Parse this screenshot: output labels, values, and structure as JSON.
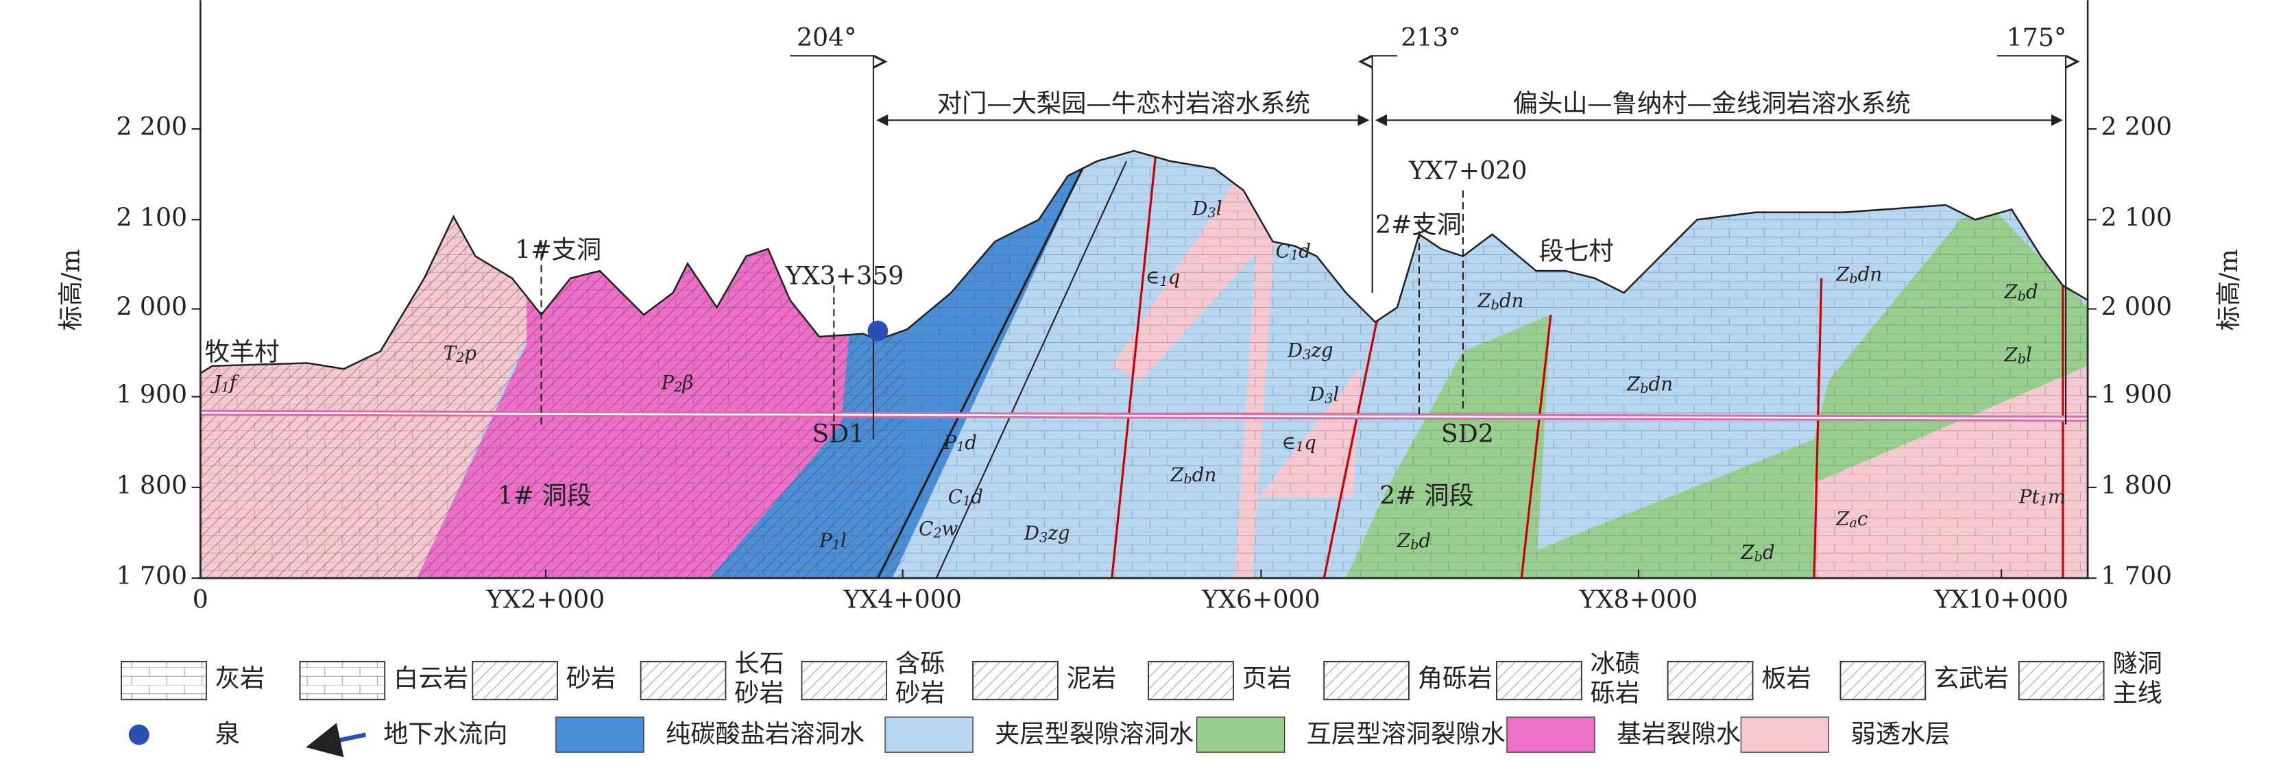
{
  "axes": {
    "y_label": "标高/m",
    "y_ticks": [
      "2 200",
      "2 100",
      "2 000",
      "1 900",
      "1 800",
      "1 700"
    ],
    "x_ticks": [
      "0",
      "YX2+000",
      "YX4+000",
      "YX6+000",
      "YX8+000",
      "YX10+000"
    ]
  },
  "bearings": [
    "204°",
    "213°",
    "175°"
  ],
  "systems": [
    "对门—大梨园—牛恋村岩溶水系统",
    "偏头山—鲁纳村—金线洞岩溶水系统"
  ],
  "places": [
    "牧羊村",
    "1#支洞",
    "YX3+359",
    "SD1",
    "1# 洞段",
    "2#支洞",
    "YX7+020",
    "段七村",
    "SD2",
    "2# 洞段"
  ],
  "formations": [
    {
      "base": "J",
      "sub": "1",
      "tail": "f"
    },
    {
      "base": "T",
      "sub": "2",
      "tail": "p"
    },
    {
      "base": "P",
      "sub": "2",
      "tail": "β"
    },
    {
      "base": "P",
      "sub": "1",
      "tail": "d"
    },
    {
      "base": "C",
      "sub": "1",
      "tail": "d"
    },
    {
      "base": "C",
      "sub": "2",
      "tail": "w"
    },
    {
      "base": "P",
      "sub": "1",
      "tail": "l"
    },
    {
      "base": "D",
      "sub": "3",
      "tail": "zg"
    },
    {
      "base": "Z",
      "sub": "b",
      "tail": "dn"
    },
    {
      "base": "∈",
      "sub": "1",
      "tail": "q"
    },
    {
      "base": "D",
      "sub": "3",
      "tail": "l"
    },
    {
      "base": "C",
      "sub": "1",
      "tail": "d"
    },
    {
      "base": "D",
      "sub": "3",
      "tail": "zg"
    },
    {
      "base": "D",
      "sub": "3",
      "tail": "l"
    },
    {
      "base": "∈",
      "sub": "1",
      "tail": "q"
    },
    {
      "base": "Z",
      "sub": "b",
      "tail": "dn"
    },
    {
      "base": "Z",
      "sub": "b",
      "tail": "dn"
    },
    {
      "base": "Z",
      "sub": "b",
      "tail": "dn"
    },
    {
      "base": "Z",
      "sub": "b",
      "tail": "d"
    },
    {
      "base": "Z",
      "sub": "b",
      "tail": "l"
    },
    {
      "base": "Z",
      "sub": "b",
      "tail": "d"
    },
    {
      "base": "Z",
      "sub": "b",
      "tail": "d"
    },
    {
      "base": "Pt",
      "sub": "1",
      "tail": "m"
    },
    {
      "base": "Z",
      "sub": "a",
      "tail": "c"
    }
  ],
  "legend_lithology": [
    {
      "lines": [
        "灰岩"
      ]
    },
    {
      "lines": [
        "白云岩"
      ]
    },
    {
      "lines": [
        "砂岩"
      ]
    },
    {
      "lines": [
        "长石",
        "砂岩"
      ]
    },
    {
      "lines": [
        "含砾",
        "砂岩"
      ]
    },
    {
      "lines": [
        "泥岩"
      ]
    },
    {
      "lines": [
        "页岩"
      ]
    },
    {
      "lines": [
        "角砾岩"
      ]
    },
    {
      "lines": [
        "冰碛",
        "砾岩"
      ]
    },
    {
      "lines": [
        "板岩"
      ]
    },
    {
      "lines": [
        "玄武岩"
      ]
    },
    {
      "lines": [
        "隧洞",
        "主线"
      ]
    }
  ],
  "legend_water": [
    "泉",
    "地下水流向",
    "纯碳酸盐岩溶洞水",
    "夹层型裂隙溶洞水",
    "互层型溶洞裂隙水",
    "基岩裂隙水",
    "弱透水层"
  ]
}
